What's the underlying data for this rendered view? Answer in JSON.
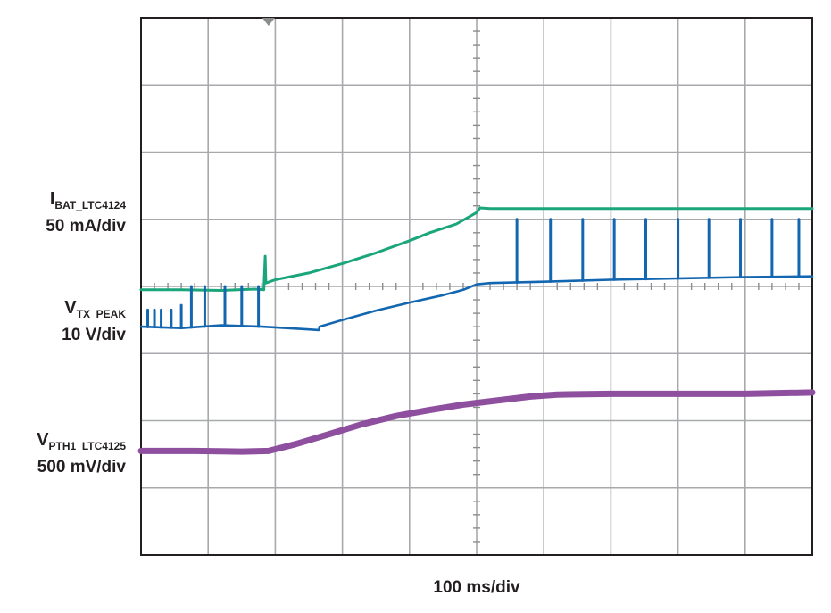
{
  "chart_data": {
    "type": "line",
    "title": "",
    "timebase": "100 ms/div",
    "grid": true,
    "x_unit": "ms",
    "xlim": [
      0,
      1000
    ],
    "divisions": {
      "x": 10,
      "y": 8
    },
    "trigger_marker_x": 190,
    "series": [
      {
        "letter": "I",
        "subscript": "BAT_LTC4124",
        "scale": "50 mA/div",
        "color": "#1aa57a",
        "width": 3,
        "points": [
          [
            0,
            -0.05
          ],
          [
            60,
            -0.05
          ],
          [
            120,
            -0.06
          ],
          [
            170,
            -0.04
          ],
          [
            183,
            -0.05
          ],
          [
            185,
            0.45
          ],
          [
            186,
            0.05
          ],
          [
            200,
            0.1
          ],
          [
            250,
            0.2
          ],
          [
            300,
            0.34
          ],
          [
            350,
            0.5
          ],
          [
            400,
            0.68
          ],
          [
            430,
            0.8
          ],
          [
            470,
            0.93
          ],
          [
            500,
            1.1
          ],
          [
            505,
            1.17
          ],
          [
            520,
            1.16
          ],
          [
            600,
            1.16
          ],
          [
            700,
            1.16
          ],
          [
            800,
            1.16
          ],
          [
            900,
            1.16
          ],
          [
            1000,
            1.16
          ]
        ],
        "spikes": []
      },
      {
        "letter": "V",
        "subscript": "TX_PEAK",
        "scale": "10 V/div",
        "color": "#1366b0",
        "width": 2.6,
        "points": [
          [
            0,
            -0.6
          ],
          [
            60,
            -0.62
          ],
          [
            120,
            -0.58
          ],
          [
            180,
            -0.6
          ],
          [
            250,
            -0.64
          ],
          [
            265,
            -0.65
          ],
          [
            266,
            -0.6
          ],
          [
            300,
            -0.5
          ],
          [
            350,
            -0.36
          ],
          [
            400,
            -0.24
          ],
          [
            450,
            -0.13
          ],
          [
            480,
            -0.05
          ],
          [
            500,
            0.03
          ],
          [
            520,
            0.05
          ],
          [
            600,
            0.07
          ],
          [
            700,
            0.1
          ],
          [
            800,
            0.12
          ],
          [
            900,
            0.14
          ],
          [
            1000,
            0.15
          ]
        ],
        "spikes": [
          [
            10,
            -0.35
          ],
          [
            20,
            -0.35
          ],
          [
            30,
            -0.35
          ],
          [
            45,
            -0.35
          ],
          [
            60,
            -0.28
          ],
          [
            75,
            0.0
          ],
          [
            95,
            0.0
          ],
          [
            125,
            0.0
          ],
          [
            150,
            0.0
          ],
          [
            175,
            0.0
          ],
          [
            560,
            1.0
          ],
          [
            610,
            1.0
          ],
          [
            658,
            1.0
          ],
          [
            705,
            1.0
          ],
          [
            752,
            1.0
          ],
          [
            800,
            1.0
          ],
          [
            846,
            1.0
          ],
          [
            893,
            1.0
          ],
          [
            940,
            1.0
          ],
          [
            980,
            1.0
          ]
        ]
      },
      {
        "letter": "V",
        "subscript": "PTH1_LTC4125",
        "scale": "500 mV/div",
        "color": "#8e4f9f",
        "width": 7,
        "points": [
          [
            0,
            -2.45
          ],
          [
            80,
            -2.45
          ],
          [
            150,
            -2.46
          ],
          [
            190,
            -2.45
          ],
          [
            230,
            -2.35
          ],
          [
            280,
            -2.2
          ],
          [
            330,
            -2.05
          ],
          [
            380,
            -1.93
          ],
          [
            430,
            -1.84
          ],
          [
            480,
            -1.76
          ],
          [
            530,
            -1.7
          ],
          [
            580,
            -1.64
          ],
          [
            620,
            -1.61
          ],
          [
            700,
            -1.6
          ],
          [
            800,
            -1.6
          ],
          [
            900,
            -1.6
          ],
          [
            1000,
            -1.58
          ]
        ],
        "spikes": []
      }
    ]
  }
}
